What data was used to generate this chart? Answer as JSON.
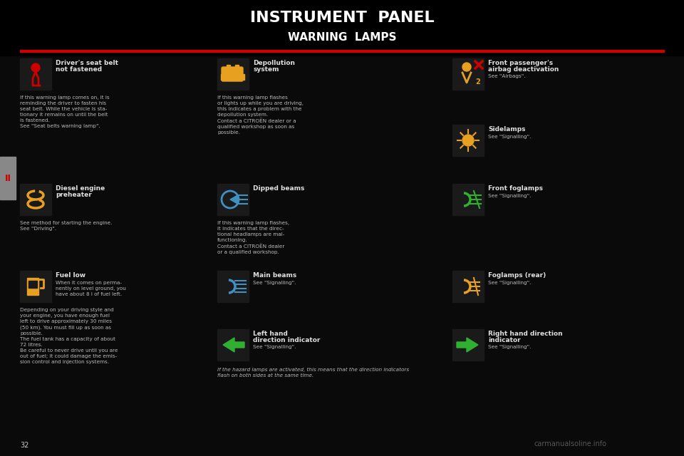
{
  "title": "INSTRUMENT  PANEL",
  "subtitle": "WARNING  LAMPS",
  "bg_color": "#0a0a0a",
  "header_bg": "#000000",
  "text_color": "#ffffff",
  "red_color": "#cc0000",
  "orange_color": "#e8a020",
  "green_color": "#30b030",
  "blue_color": "#4090c0",
  "gray_color": "#aaaaaa",
  "icon_bg": "#1a1a1a",
  "sidebar_color": "#888888",
  "page_number": "32",
  "sidebar_text": "II",
  "watermark": "carmanualsoline.info"
}
